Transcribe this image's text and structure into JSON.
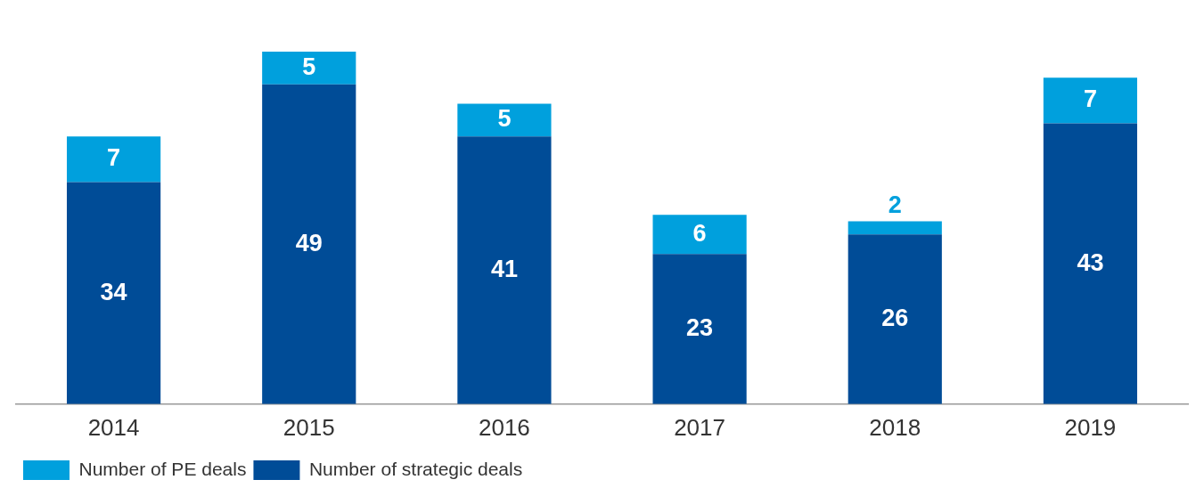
{
  "chart_data": {
    "type": "bar",
    "stacked": true,
    "categories": [
      "2014",
      "2015",
      "2016",
      "2017",
      "2018",
      "2019"
    ],
    "series": [
      {
        "name": "Number of strategic deals",
        "color": "#004c97",
        "values": [
          34,
          49,
          41,
          23,
          26,
          43
        ]
      },
      {
        "name": "Number of PE deals",
        "color": "#00a0dd",
        "values": [
          7,
          5,
          5,
          6,
          2,
          7
        ]
      }
    ],
    "data_labels": true,
    "legend": "bottom left",
    "grid": false
  }
}
